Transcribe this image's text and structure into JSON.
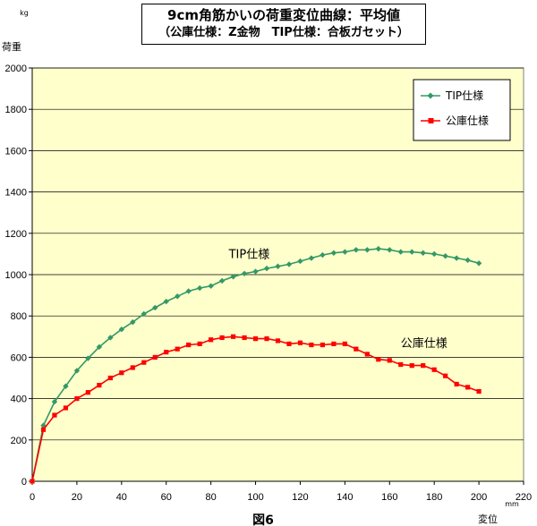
{
  "title": {
    "line1": "9cm角筋かいの荷重変位曲線：平均値",
    "line2": "（公庫仕様：Z金物　TIP仕様：合板ガセット）"
  },
  "caption": "図6",
  "colors": {
    "plot_bg": "#ffffcc",
    "tip": "#339966",
    "koko": "#ff0000"
  },
  "chart_data": {
    "type": "line",
    "title": "9cm角筋かいの荷重変位曲線：平均値（公庫仕様：Z金物　TIP仕様：合板ガセット）",
    "xlabel": "変位",
    "xunit": "mm",
    "ylabel": "荷重",
    "yunit": "kg",
    "xlim": [
      0,
      220
    ],
    "ylim": [
      0,
      2000
    ],
    "xticks": [
      0,
      20,
      40,
      60,
      80,
      100,
      120,
      140,
      160,
      180,
      200,
      220
    ],
    "yticks": [
      0,
      200,
      400,
      600,
      800,
      1000,
      1200,
      1400,
      1600,
      1800,
      2000
    ],
    "grid": "horizontal",
    "legend": "top-right",
    "series": [
      {
        "name": "TIP仕様",
        "marker": "diamond",
        "color": "#339966",
        "x": [
          0,
          5,
          10,
          15,
          20,
          25,
          30,
          35,
          40,
          45,
          50,
          55,
          60,
          65,
          70,
          75,
          80,
          85,
          90,
          95,
          100,
          105,
          110,
          115,
          120,
          125,
          130,
          135,
          140,
          145,
          150,
          155,
          160,
          165,
          170,
          175,
          180,
          185,
          190,
          195,
          200
        ],
        "y": [
          0,
          270,
          385,
          460,
          535,
          595,
          650,
          695,
          735,
          770,
          810,
          840,
          870,
          895,
          920,
          935,
          945,
          970,
          990,
          1005,
          1015,
          1030,
          1040,
          1050,
          1065,
          1080,
          1095,
          1105,
          1110,
          1120,
          1120,
          1125,
          1120,
          1110,
          1110,
          1105,
          1100,
          1090,
          1080,
          1070,
          1055
        ]
      },
      {
        "name": "公庫仕様",
        "marker": "square",
        "color": "#ff0000",
        "x": [
          0,
          5,
          10,
          15,
          20,
          25,
          30,
          35,
          40,
          45,
          50,
          55,
          60,
          65,
          70,
          75,
          80,
          85,
          90,
          95,
          100,
          105,
          110,
          115,
          120,
          125,
          130,
          135,
          140,
          145,
          150,
          155,
          160,
          165,
          170,
          175,
          180,
          185,
          190,
          195,
          200
        ],
        "y": [
          0,
          250,
          320,
          355,
          400,
          430,
          465,
          500,
          525,
          550,
          575,
          600,
          625,
          640,
          660,
          665,
          685,
          695,
          700,
          695,
          690,
          690,
          680,
          665,
          670,
          660,
          660,
          665,
          665,
          640,
          615,
          590,
          585,
          565,
          560,
          560,
          540,
          510,
          470,
          455,
          435
        ]
      }
    ],
    "annotations": [
      {
        "text": "TIP仕様",
        "x": 88,
        "y": 1080
      },
      {
        "text": "公庫仕様",
        "x": 165,
        "y": 650
      }
    ]
  }
}
